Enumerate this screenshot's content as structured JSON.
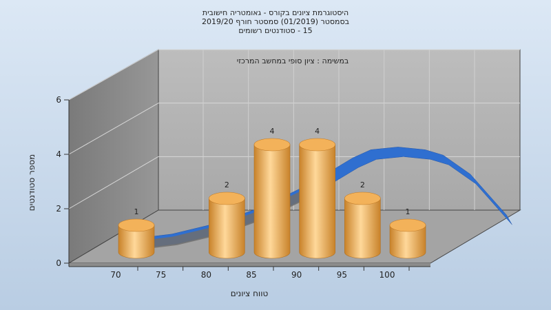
{
  "chart_data": {
    "type": "bar",
    "title_lines": [
      "היסטוגרמת ציונים בקורס - גאומטריה חישובית",
      "בסמסטר  (01/2019)  סמסטר חורף 2019/20",
      "15 - סטודנטים רשומים"
    ],
    "annotation": "במשימה : ציון סופי במחשב המרכזי",
    "xlabel": "טווח ציונים",
    "ylabel": "מספר סטודנטים",
    "x_ticks": [
      70,
      75,
      80,
      85,
      90,
      95,
      100
    ],
    "y_ticks": [
      0,
      2,
      4,
      6
    ],
    "ylim": [
      0,
      6
    ],
    "grid": true,
    "bars": [
      {
        "x": 70,
        "value": 1
      },
      {
        "x": 80,
        "value": 2
      },
      {
        "x": 85,
        "value": 4
      },
      {
        "x": 90,
        "value": 4
      },
      {
        "x": 95,
        "value": 2
      },
      {
        "x": 100,
        "value": 1
      }
    ],
    "curve": {
      "x": [
        65,
        70,
        75,
        80,
        85,
        88,
        90,
        92,
        95,
        98,
        100,
        103,
        107
      ],
      "y": [
        0.1,
        0.3,
        0.7,
        1.3,
        2.1,
        2.7,
        3.1,
        3.4,
        3.5,
        3.4,
        3.2,
        2.5,
        1.0
      ]
    },
    "colors": {
      "bar_side": "#e8a54a",
      "bar_light": "#ffd89a",
      "bar_dark": "#c8822a",
      "bar_top": "#f3b25a",
      "curve": "#2f6fd0",
      "curve_shadow": "#6f6f6f",
      "back_wall": "#b4b4b4",
      "left_wall": "#8a8a8a",
      "floor": "#a4a4a4"
    }
  }
}
